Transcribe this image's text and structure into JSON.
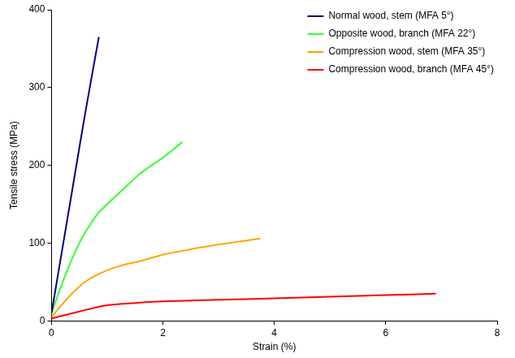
{
  "chart_data": {
    "type": "line",
    "x_label": "Strain (%)",
    "y_label": "Tensile stress (MPa)",
    "xlim": [
      0,
      8
    ],
    "xticks": [
      0,
      2,
      4,
      6,
      8
    ],
    "ylim": [
      0,
      400
    ],
    "yticks": [
      0,
      100,
      200,
      300,
      400
    ],
    "grid": false,
    "legend": "top-right",
    "series": [
      {
        "name": "Normal wood, stem (MFA 5°)",
        "color": "#000080",
        "x": [
          0,
          0.2,
          0.4,
          0.6,
          0.85
        ],
        "values": [
          10,
          95,
          180,
          265,
          365
        ]
      },
      {
        "name": "Opposite wood, branch (MFA 22°)",
        "color": "#33ff33",
        "x": [
          0,
          0.2,
          0.5,
          0.8,
          1,
          1.3,
          1.6,
          2,
          2.35
        ],
        "values": [
          10,
          50,
          100,
          135,
          150,
          170,
          190,
          210,
          230
        ]
      },
      {
        "name": "Compression wood, stem (MFA 35°)",
        "color": "#ffa500",
        "x": [
          0,
          0.3,
          0.6,
          0.9,
          1.2,
          1.6,
          2,
          2.5,
          3,
          3.75
        ],
        "values": [
          5,
          30,
          50,
          62,
          70,
          77,
          85,
          92,
          98,
          106
        ]
      },
      {
        "name": "Compression wood, branch (MFA 45°)",
        "color": "#ff0000",
        "x": [
          0,
          0.5,
          1,
          1.5,
          2,
          3,
          4,
          5,
          6,
          6.9
        ],
        "values": [
          3,
          12,
          20,
          23,
          25,
          27,
          29,
          31,
          33,
          35
        ]
      }
    ]
  }
}
